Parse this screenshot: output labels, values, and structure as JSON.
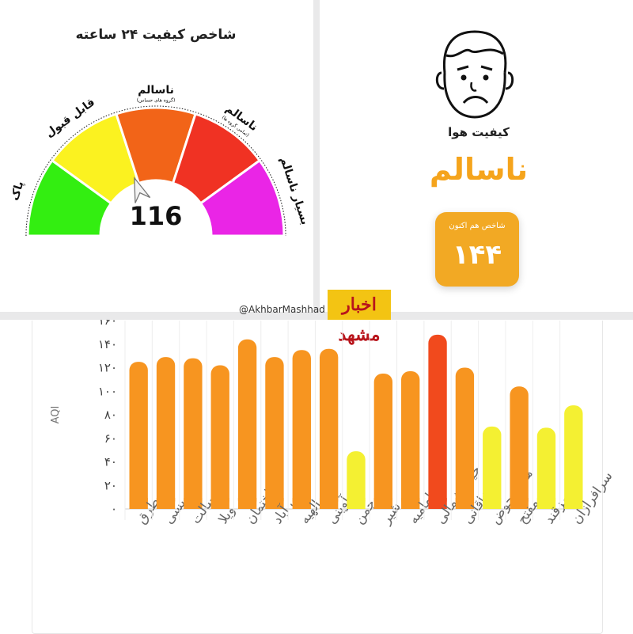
{
  "gauge": {
    "title": "شاخص کیفیت ۲۴ ساعته",
    "value": "116",
    "value_numeric": 116,
    "segments": [
      {
        "label": "پاک",
        "color": "#33ee11"
      },
      {
        "label": "قابل قبول",
        "color": "#fbf220"
      },
      {
        "label": "ناسالم",
        "sublabel": "(گروه های حساس)",
        "color": "#f26418"
      },
      {
        "label": "ناسالم",
        "sublabel": "(تمامی گروه ها)",
        "color": "#f03223"
      },
      {
        "label": "بسیار ناسالم",
        "color": "#ea25e6"
      }
    ]
  },
  "status": {
    "air_quality_label": "کیفیت هوا",
    "status_text": "ناسالم",
    "now_index_label": "شاخص هم اکنون",
    "now_index_value": "۱۴۴",
    "accent_color": "#f2a924"
  },
  "watermark": {
    "handle": "@AkhbarMashhad",
    "logo_text": "اخبار مشهد"
  },
  "chart_data": {
    "type": "bar",
    "ylabel": "AQI",
    "ylim": [
      0,
      160
    ],
    "yticks": [
      "۰",
      "۲۰",
      "۴۰",
      "۶۰",
      "۸۰",
      "۱۰۰",
      "۱۲۰",
      "۱۴۰",
      "۱۶۰"
    ],
    "ytick_values": [
      0,
      20,
      40,
      60,
      80,
      100,
      120,
      140,
      160
    ],
    "grid": false,
    "categories": [
      "طرق",
      "نخریسی",
      "رسالت",
      "ویلا",
      "ساختمان",
      "تقی آباد",
      "الهیه",
      "آوینی",
      "چمن",
      "شیر",
      "امامیه",
      "خیام شمالی",
      "خاقانی",
      "هفت حوض",
      "مفتح",
      "سمزقند",
      "سرافرازان"
    ],
    "values": [
      125,
      129,
      128,
      122,
      144,
      129,
      135,
      136,
      49,
      115,
      117,
      148,
      120,
      70,
      104,
      69,
      88
    ],
    "colors": [
      "#f79520",
      "#f79520",
      "#f79520",
      "#f79520",
      "#f79520",
      "#f79520",
      "#f79520",
      "#f79520",
      "#f4f032",
      "#f79520",
      "#f79520",
      "#f14a1d",
      "#f79520",
      "#f4f032",
      "#f79520",
      "#f4f032",
      "#f4f032"
    ]
  }
}
